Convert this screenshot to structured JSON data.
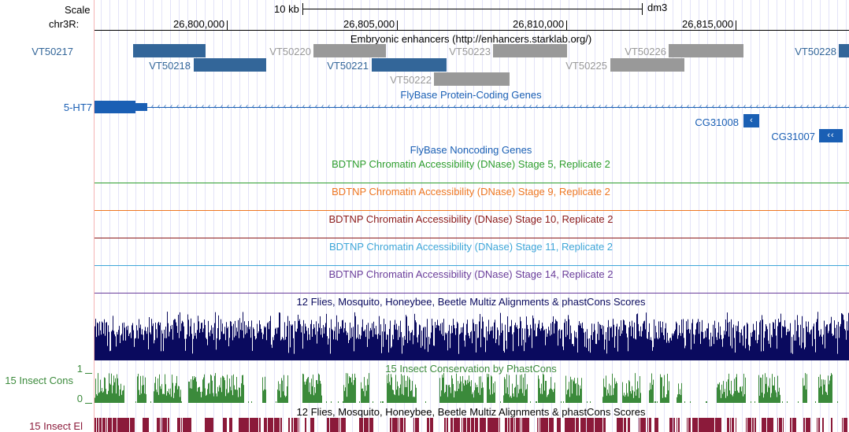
{
  "header": {
    "scale_label": "Scale",
    "chrom_label": "chr3R:",
    "scalebar_text": "10 kb",
    "assembly": "dm3",
    "ticks": [
      "26,800,000",
      "26,805,000",
      "26,810,000",
      "26,815,000"
    ]
  },
  "enhancers": {
    "title": "Embryonic enhancers (http://enhancers.starklab.org/)",
    "items": [
      {
        "name": "VT50217",
        "color": "#336699"
      },
      {
        "name": "VT50218",
        "color": "#336699"
      },
      {
        "name": "VT50220",
        "color": "#999999"
      },
      {
        "name": "VT50221",
        "color": "#336699"
      },
      {
        "name": "VT50222",
        "color": "#999999"
      },
      {
        "name": "VT50223",
        "color": "#999999"
      },
      {
        "name": "VT50225",
        "color": "#999999"
      },
      {
        "name": "VT50226",
        "color": "#999999"
      },
      {
        "name": "VT50228",
        "color": "#336699"
      }
    ]
  },
  "genes": {
    "title": "FlyBase Protein-Coding Genes",
    "gene_1": "5-HT7",
    "gene_2": "CG31008",
    "gene_3": "CG31007",
    "color": "#1a5fb4"
  },
  "noncoding": {
    "title": "FlyBase Noncoding Genes"
  },
  "dnase": [
    {
      "title": "BDTNP Chromatin Accessibility (DNase) Stage 5, Replicate 2",
      "color": "#2e9e2e"
    },
    {
      "title": "BDTNP Chromatin Accessibility (DNase) Stage 9, Replicate 2",
      "color": "#ee7722"
    },
    {
      "title": "BDTNP Chromatin Accessibility (DNase) Stage 10, Replicate 2",
      "color": "#8b1a1a"
    },
    {
      "title": "BDTNP Chromatin Accessibility (DNase) Stage 11, Replicate 2",
      "color": "#3ea6d8"
    },
    {
      "title": "BDTNP Chromatin Accessibility (DNase) Stage 14, Replicate 2",
      "color": "#6a3d9a"
    }
  ],
  "multiz": {
    "title": "12 Flies, Mosquito, Honeybee, Beetle Multiz Alignments & phastCons Scores",
    "color": "#0a0a5e"
  },
  "cons": {
    "title": "15 Insect Conservation by PhastCons",
    "label": "15 Insect Cons",
    "max": "1",
    "min": "0",
    "color": "#3b8a3b"
  },
  "elements": {
    "title": "12 Flies, Mosquito, Honeybee, Beetle Multiz Alignments & phastCons Scores",
    "label": "15 Insect El",
    "color": "#8b1a3a"
  }
}
